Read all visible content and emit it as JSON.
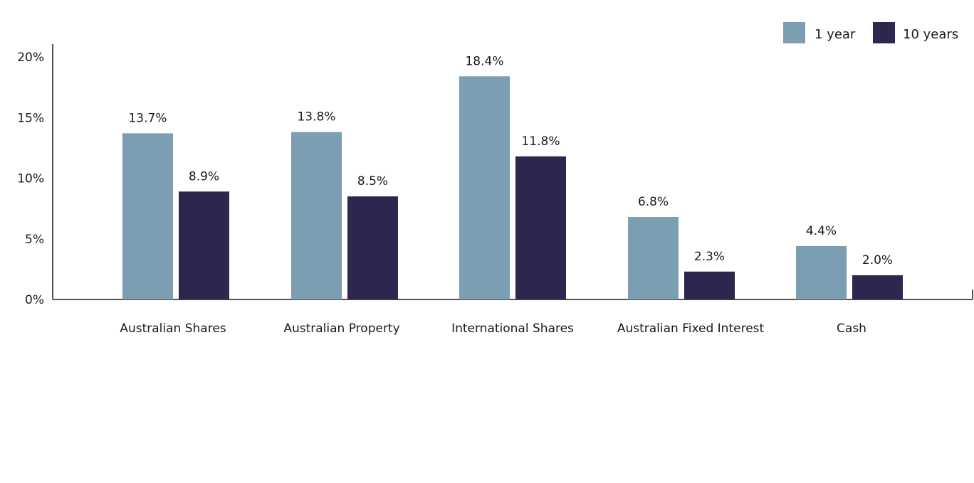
{
  "chart_data": {
    "type": "bar",
    "categories": [
      "Australian Shares",
      "Australian Property",
      "International Shares",
      "Australian Fixed Interest",
      "Cash"
    ],
    "series": [
      {
        "name": "1 year",
        "color": "#7b9eb3",
        "values": [
          13.7,
          13.8,
          18.4,
          6.8,
          4.4
        ],
        "labels": [
          "13.7%",
          "13.8%",
          "18.4%",
          "6.8%",
          "4.4%"
        ]
      },
      {
        "name": "10 years",
        "color": "#2d274f",
        "values": [
          8.9,
          8.5,
          11.8,
          2.3,
          2.0
        ],
        "labels": [
          "8.9%",
          "8.5%",
          "11.8%",
          "2.3%",
          "2.0%"
        ]
      }
    ],
    "yticks": [
      "0%",
      "5%",
      "10%",
      "15%",
      "20%"
    ],
    "ytick_values": [
      0,
      5,
      10,
      15,
      20
    ],
    "ylim": [
      0,
      21
    ],
    "legend_position": "top-right",
    "grid": false
  }
}
